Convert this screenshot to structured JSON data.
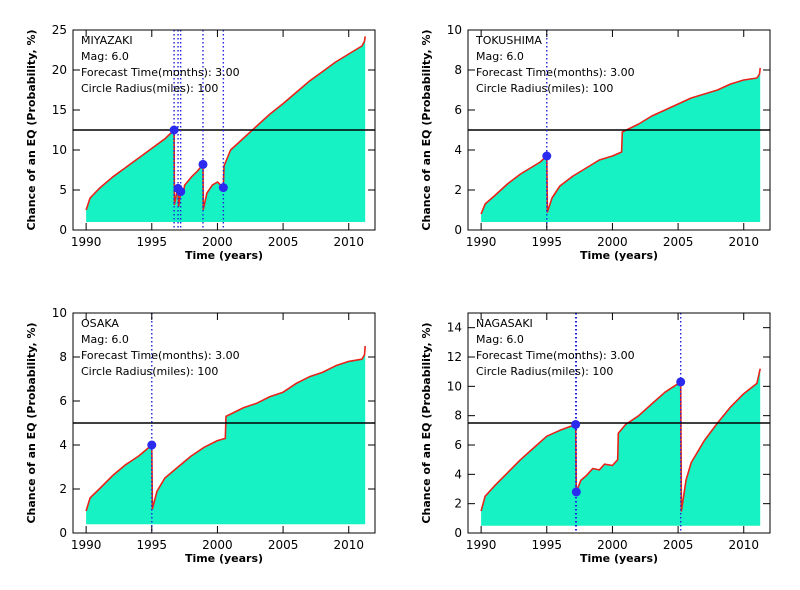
{
  "chart_data": [
    {
      "type": "area",
      "panel": "top-left",
      "info": {
        "name": "MIYAZAKI",
        "mag": "Mag: 6.0",
        "forecast": "Forecast Time(months): 3.00",
        "radius": "Circle Radius(miles): 100"
      },
      "xlabel": "Time (years)",
      "ylabel": "Chance of an EQ (Probability, %)",
      "xlim": [
        1989,
        2012
      ],
      "ylim": [
        0,
        25
      ],
      "xticks": [
        1990,
        1995,
        2000,
        2005,
        2010
      ],
      "xtick_labels": [
        "1990",
        "1995",
        "2000",
        "2005",
        "2010"
      ],
      "yticks": [
        0,
        5,
        10,
        15,
        20,
        25
      ],
      "ytick_labels": [
        "0",
        "5",
        "10",
        "15",
        "20",
        "25"
      ],
      "threshold": 12.5,
      "baseline": 1.0,
      "series": [
        {
          "values": [
            [
              1990.0,
              2.5
            ],
            [
              1990.3,
              4.0
            ],
            [
              1991.0,
              5.2
            ],
            [
              1992.0,
              6.6
            ],
            [
              1993.0,
              7.8
            ],
            [
              1994.0,
              9.0
            ],
            [
              1995.0,
              10.2
            ],
            [
              1996.0,
              11.4
            ],
            [
              1996.7,
              12.5
            ],
            [
              1996.72,
              3.2
            ],
            [
              1996.9,
              4.6
            ],
            [
              1997.0,
              5.2
            ],
            [
              1997.05,
              3.0
            ],
            [
              1997.2,
              4.8
            ],
            [
              1997.4,
              4.5
            ],
            [
              1997.5,
              5.6
            ],
            [
              1998.0,
              6.6
            ],
            [
              1998.5,
              7.4
            ],
            [
              1998.9,
              8.2
            ],
            [
              1998.92,
              2.6
            ],
            [
              1999.2,
              4.6
            ],
            [
              1999.6,
              5.6
            ],
            [
              2000.0,
              6.0
            ],
            [
              2000.45,
              5.3
            ],
            [
              2000.5,
              8.0
            ],
            [
              2001.0,
              10.0
            ],
            [
              2002.0,
              11.5
            ],
            [
              2003.0,
              13.0
            ],
            [
              2004.0,
              14.5
            ],
            [
              2005.0,
              15.8
            ],
            [
              2006.0,
              17.2
            ],
            [
              2007.0,
              18.6
            ],
            [
              2008.0,
              19.8
            ],
            [
              2009.0,
              21.0
            ],
            [
              2010.0,
              22.0
            ],
            [
              2011.0,
              23.0
            ],
            [
              2011.2,
              23.6
            ],
            [
              2011.25,
              24.2
            ]
          ]
        }
      ],
      "events": [
        [
          1996.7,
          12.5
        ],
        [
          1997.0,
          5.2
        ],
        [
          1997.2,
          4.8
        ],
        [
          1998.9,
          8.2
        ],
        [
          2000.45,
          5.3
        ]
      ]
    },
    {
      "type": "area",
      "panel": "top-right",
      "info": {
        "name": "TOKUSHIMA",
        "mag": "Mag: 6.0",
        "forecast": "Forecast Time(months): 3.00",
        "radius": "Circle Radius(miles): 100"
      },
      "xlabel": "Time (years)",
      "ylabel": "Chance of an EQ (Probability, %)",
      "xlim": [
        1989,
        2012
      ],
      "ylim": [
        0,
        10
      ],
      "xticks": [
        1990,
        1995,
        2000,
        2005,
        2010
      ],
      "xtick_labels": [
        "1990",
        "1995",
        "2000",
        "2005",
        "2010"
      ],
      "yticks": [
        0,
        2,
        4,
        6,
        8,
        10
      ],
      "ytick_labels": [
        "0",
        "2",
        "4",
        "6",
        "8",
        "10"
      ],
      "threshold": 5.0,
      "baseline": 0.4,
      "series": [
        {
          "values": [
            [
              1990.0,
              0.8
            ],
            [
              1990.3,
              1.3
            ],
            [
              1991.0,
              1.7
            ],
            [
              1992.0,
              2.3
            ],
            [
              1993.0,
              2.8
            ],
            [
              1994.0,
              3.2
            ],
            [
              1994.5,
              3.4
            ],
            [
              1995.0,
              3.7
            ],
            [
              1995.05,
              0.9
            ],
            [
              1995.4,
              1.6
            ],
            [
              1996.0,
              2.2
            ],
            [
              1997.0,
              2.7
            ],
            [
              1998.0,
              3.1
            ],
            [
              1999.0,
              3.5
            ],
            [
              2000.0,
              3.7
            ],
            [
              2000.7,
              3.9
            ],
            [
              2000.75,
              4.9
            ],
            [
              2002.0,
              5.3
            ],
            [
              2003.0,
              5.7
            ],
            [
              2004.0,
              6.0
            ],
            [
              2005.0,
              6.3
            ],
            [
              2006.0,
              6.6
            ],
            [
              2007.0,
              6.8
            ],
            [
              2008.0,
              7.0
            ],
            [
              2009.0,
              7.3
            ],
            [
              2010.0,
              7.5
            ],
            [
              2011.0,
              7.6
            ],
            [
              2011.2,
              7.8
            ],
            [
              2011.25,
              8.1
            ]
          ]
        }
      ],
      "events": [
        [
          1995.0,
          3.7
        ]
      ]
    },
    {
      "type": "area",
      "panel": "bottom-left",
      "info": {
        "name": "OSAKA",
        "mag": "Mag: 6.0",
        "forecast": "Forecast Time(months): 3.00",
        "radius": "Circle Radius(miles): 100"
      },
      "xlabel": "Time (years)",
      "ylabel": "Chance of an EQ (Probability, %)",
      "xlim": [
        1989,
        2012
      ],
      "ylim": [
        0,
        10
      ],
      "xticks": [
        1990,
        1995,
        2000,
        2005,
        2010
      ],
      "xtick_labels": [
        "1990",
        "1995",
        "2000",
        "2005",
        "2010"
      ],
      "yticks": [
        0,
        2,
        4,
        6,
        8,
        10
      ],
      "ytick_labels": [
        "0",
        "2",
        "4",
        "6",
        "8",
        "10"
      ],
      "threshold": 5.0,
      "baseline": 0.4,
      "series": [
        {
          "values": [
            [
              1990.0,
              1.0
            ],
            [
              1990.3,
              1.6
            ],
            [
              1991.0,
              2.0
            ],
            [
              1992.0,
              2.6
            ],
            [
              1993.0,
              3.1
            ],
            [
              1994.0,
              3.5
            ],
            [
              1995.0,
              4.0
            ],
            [
              1995.05,
              1.1
            ],
            [
              1995.4,
              1.9
            ],
            [
              1996.0,
              2.5
            ],
            [
              1997.0,
              3.0
            ],
            [
              1998.0,
              3.5
            ],
            [
              1999.0,
              3.9
            ],
            [
              2000.0,
              4.2
            ],
            [
              2000.6,
              4.3
            ],
            [
              2000.65,
              5.3
            ],
            [
              2002.0,
              5.7
            ],
            [
              2003.0,
              5.9
            ],
            [
              2004.0,
              6.2
            ],
            [
              2005.0,
              6.4
            ],
            [
              2006.0,
              6.8
            ],
            [
              2007.0,
              7.1
            ],
            [
              2008.0,
              7.3
            ],
            [
              2009.0,
              7.6
            ],
            [
              2010.0,
              7.8
            ],
            [
              2011.0,
              7.9
            ],
            [
              2011.2,
              8.1
            ],
            [
              2011.25,
              8.5
            ]
          ]
        }
      ],
      "events": [
        [
          1995.0,
          4.0
        ]
      ]
    },
    {
      "type": "area",
      "panel": "bottom-right",
      "info": {
        "name": "NAGASAKI",
        "mag": "Mag: 6.0",
        "forecast": "Forecast Time(months): 3.00",
        "radius": "Circle Radius(miles): 100"
      },
      "xlabel": "Time (years)",
      "ylabel": "Chance of an EQ (Probability, %)",
      "xlim": [
        1989,
        2012
      ],
      "ylim": [
        0,
        15
      ],
      "xticks": [
        1990,
        1995,
        2000,
        2005,
        2010
      ],
      "xtick_labels": [
        "1990",
        "1995",
        "2000",
        "2005",
        "2010"
      ],
      "yticks": [
        0,
        2,
        4,
        6,
        8,
        10,
        12,
        14
      ],
      "ytick_labels": [
        "0",
        "2",
        "4",
        "6",
        "8",
        "10",
        "12",
        "14"
      ],
      "threshold": 7.5,
      "baseline": 0.5,
      "series": [
        {
          "values": [
            [
              1990.0,
              1.5
            ],
            [
              1990.3,
              2.5
            ],
            [
              1991.0,
              3.2
            ],
            [
              1992.0,
              4.1
            ],
            [
              1993.0,
              5.0
            ],
            [
              1994.0,
              5.8
            ],
            [
              1995.0,
              6.6
            ],
            [
              1996.0,
              7.0
            ],
            [
              1997.2,
              7.4
            ],
            [
              1997.25,
              2.8
            ],
            [
              1997.6,
              3.6
            ],
            [
              1998.0,
              3.9
            ],
            [
              1998.5,
              4.4
            ],
            [
              1999.0,
              4.3
            ],
            [
              1999.4,
              4.7
            ],
            [
              2000.0,
              4.6
            ],
            [
              2000.4,
              5.0
            ],
            [
              2000.45,
              6.8
            ],
            [
              2001.0,
              7.4
            ],
            [
              2002.0,
              8.0
            ],
            [
              2003.0,
              8.8
            ],
            [
              2004.0,
              9.6
            ],
            [
              2005.2,
              10.3
            ],
            [
              2005.25,
              1.5
            ],
            [
              2005.6,
              3.6
            ],
            [
              2006.0,
              4.8
            ],
            [
              2007.0,
              6.3
            ],
            [
              2008.0,
              7.5
            ],
            [
              2009.0,
              8.6
            ],
            [
              2010.0,
              9.5
            ],
            [
              2011.0,
              10.2
            ],
            [
              2011.25,
              11.2
            ]
          ]
        }
      ],
      "events": [
        [
          1997.2,
          7.4
        ],
        [
          1997.25,
          2.8
        ],
        [
          2005.2,
          10.3
        ]
      ]
    }
  ]
}
